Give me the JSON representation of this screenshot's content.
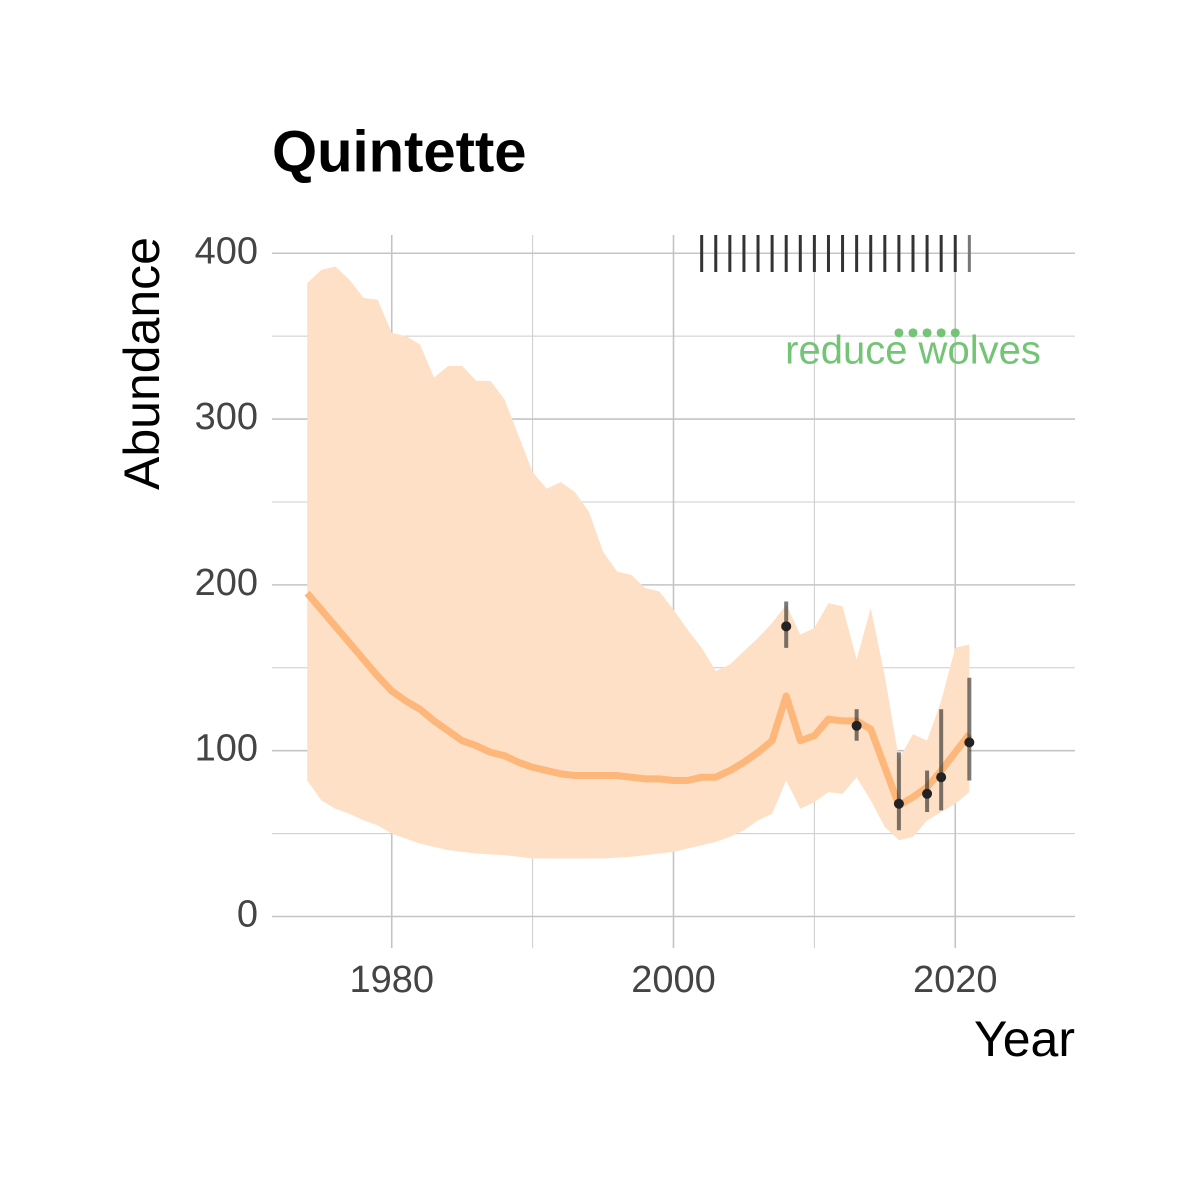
{
  "chart_data": {
    "type": "line",
    "title": "Quintette",
    "x_label": "Year",
    "y_label": "Abundance",
    "x": [
      1974,
      1975,
      1976,
      1977,
      1978,
      1979,
      1980,
      1981,
      1982,
      1983,
      1984,
      1985,
      1986,
      1987,
      1988,
      1989,
      1990,
      1991,
      1992,
      1993,
      1994,
      1995,
      1996,
      1997,
      1998,
      1999,
      2000,
      2001,
      2002,
      2003,
      2004,
      2005,
      2006,
      2007,
      2008,
      2009,
      2010,
      2011,
      2012,
      2013,
      2014,
      2015,
      2016,
      2017,
      2018,
      2019,
      2020,
      2021
    ],
    "median": [
      195,
      185,
      175,
      165,
      155,
      145,
      136,
      130,
      125,
      118,
      112,
      106,
      103,
      99,
      97,
      93,
      90,
      88,
      86,
      85,
      85,
      85,
      85,
      84,
      83,
      83,
      82,
      82,
      84,
      84,
      88,
      93,
      99,
      106,
      133,
      106,
      109,
      119,
      118,
      118,
      113,
      90,
      67,
      72,
      78,
      88,
      99,
      110
    ],
    "upper": [
      382,
      390,
      392,
      384,
      373,
      372,
      352,
      350,
      345,
      325,
      332,
      332,
      323,
      323,
      312,
      290,
      268,
      258,
      262,
      256,
      244,
      220,
      208,
      206,
      198,
      196,
      185,
      173,
      162,
      148,
      152,
      160,
      168,
      177,
      188,
      170,
      174,
      189,
      187,
      155,
      186,
      145,
      95,
      110,
      106,
      130,
      162,
      164
    ],
    "lower": [
      82,
      70,
      65,
      62,
      58,
      55,
      50,
      47,
      44,
      42,
      40,
      39,
      38,
      37.5,
      37,
      36,
      35,
      35,
      35,
      35,
      35,
      35,
      35.5,
      36,
      37,
      38,
      39,
      41,
      43,
      45,
      48,
      52,
      58,
      62,
      82,
      65,
      69,
      75,
      74,
      84,
      70,
      54,
      46,
      48,
      58,
      63,
      68,
      75
    ],
    "line_color": "#fdb77a",
    "band_color": "#fde0c5",
    "observations": {
      "x": [
        2008,
        2013,
        2016,
        2018,
        2019,
        2021
      ],
      "values": [
        175,
        115,
        68,
        74,
        84,
        105
      ],
      "lower": [
        162,
        106,
        52,
        63,
        64,
        82
      ],
      "upper": [
        190,
        125,
        99,
        88,
        125,
        144
      ],
      "color": "#222222"
    },
    "rug_x": [
      2002,
      2003,
      2004,
      2005,
      2006,
      2007,
      2008,
      2009,
      2010,
      2011,
      2012,
      2013,
      2014,
      2015,
      2016,
      2017,
      2018,
      2019,
      2020,
      2021
    ],
    "treatment": {
      "x": [
        2016,
        2017,
        2018,
        2019,
        2020
      ],
      "values": [
        352,
        352,
        352,
        352,
        352
      ],
      "color": "#74c476"
    },
    "annotation": {
      "text": "reduce wolves",
      "x": 2017,
      "y": 340,
      "color": "#74c476"
    },
    "xlim": [
      1971.5,
      2028.5
    ],
    "ylim": [
      -19,
      411
    ],
    "xticks": [
      1980,
      2000,
      2020
    ],
    "yticks": [
      0,
      100,
      200,
      300,
      400
    ],
    "xminor": [
      1990,
      2010
    ],
    "yminor": [
      50,
      150,
      250,
      350
    ],
    "grid": true
  }
}
